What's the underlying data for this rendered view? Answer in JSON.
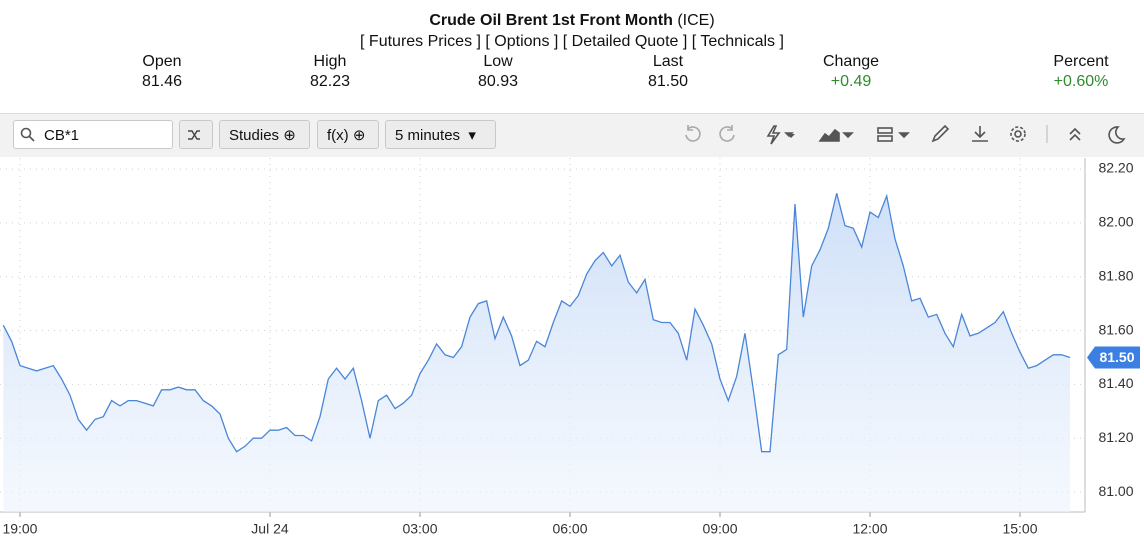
{
  "header": {
    "title": "Crude Oil Brent 1st Front Month",
    "exchange": "(ICE)",
    "links": [
      "[ Futures Prices ]",
      "[ Options ]",
      "[ Detailed Quote ]",
      "[ Technicals ]"
    ],
    "stats": [
      {
        "label": "Open",
        "value": "81.46"
      },
      {
        "label": "High",
        "value": "82.23"
      },
      {
        "label": "Low",
        "value": "80.93"
      },
      {
        "label": "Last",
        "value": "81.50"
      },
      {
        "label": "Change",
        "value": "+0.49"
      },
      {
        "label": "Percent",
        "value": "+0.60%"
      }
    ]
  },
  "toolbar": {
    "symbol": "CB*1",
    "studies": "Studies",
    "fx": "f(x)",
    "interval": "5 minutes"
  },
  "chart_data": {
    "type": "area",
    "ylim": [
      80.926,
      82.241
    ],
    "yticks": [
      {
        "value": 81,
        "label": "81.00"
      },
      {
        "value": 81.2,
        "label": "81.20"
      },
      {
        "value": 81.4,
        "label": "81.40"
      },
      {
        "value": 81.6,
        "label": "81.60"
      },
      {
        "value": 81.8,
        "label": "81.80"
      },
      {
        "value": 82,
        "label": "82.00"
      },
      {
        "value": 82.2,
        "label": "82.20"
      }
    ],
    "grid": true,
    "last_label": "81.50",
    "last_color": "#3b7fe3",
    "categories": [
      null,
      null,
      "19:00",
      null,
      null,
      null,
      null,
      null,
      null,
      null,
      null,
      null,
      null,
      null,
      null,
      null,
      null,
      null,
      null,
      null,
      null,
      null,
      null,
      null,
      null,
      null,
      null,
      null,
      null,
      null,
      null,
      null,
      "Jul 24",
      null,
      null,
      null,
      null,
      null,
      null,
      null,
      null,
      null,
      null,
      null,
      null,
      null,
      null,
      null,
      null,
      null,
      "03:00",
      null,
      null,
      null,
      null,
      null,
      null,
      null,
      null,
      null,
      null,
      null,
      null,
      null,
      null,
      null,
      null,
      null,
      "06:00",
      null,
      null,
      null,
      null,
      null,
      null,
      null,
      null,
      null,
      null,
      null,
      null,
      null,
      null,
      null,
      null,
      null,
      "09:00",
      null,
      null,
      null,
      null,
      null,
      null,
      null,
      null,
      null,
      null,
      null,
      null,
      null,
      null,
      null,
      null,
      null,
      "12:00",
      null,
      null,
      null,
      null,
      null,
      null,
      null,
      null,
      null,
      null,
      null,
      null,
      null,
      null,
      null,
      null,
      null,
      "15:00",
      null,
      null,
      null,
      null,
      null,
      null
    ],
    "series": [
      {
        "color": "#4a86d8",
        "values": [
          81.62,
          81.56,
          81.47,
          81.46,
          81.45,
          81.46,
          81.47,
          81.42,
          81.36,
          81.27,
          81.23,
          81.27,
          81.28,
          81.34,
          81.32,
          81.34,
          81.34,
          81.33,
          81.32,
          81.38,
          81.38,
          81.39,
          81.38,
          81.38,
          81.34,
          81.32,
          81.29,
          81.2,
          81.15,
          81.17,
          81.2,
          81.2,
          81.23,
          81.23,
          81.24,
          81.21,
          81.21,
          81.19,
          81.28,
          81.42,
          81.46,
          81.42,
          81.46,
          81.34,
          81.2,
          81.34,
          81.36,
          81.31,
          81.33,
          81.36,
          81.44,
          81.49,
          81.55,
          81.51,
          81.5,
          81.54,
          81.65,
          81.7,
          81.71,
          81.57,
          81.65,
          81.58,
          81.47,
          81.49,
          81.56,
          81.54,
          81.63,
          81.71,
          81.69,
          81.73,
          81.81,
          81.86,
          81.89,
          81.84,
          81.88,
          81.78,
          81.74,
          81.79,
          81.64,
          81.63,
          81.63,
          81.59,
          81.49,
          81.68,
          81.62,
          81.55,
          81.42,
          81.34,
          81.43,
          81.59,
          81.38,
          81.15,
          81.15,
          81.51,
          81.53,
          82.07,
          81.65,
          81.84,
          81.9,
          81.98,
          82.11,
          81.99,
          81.98,
          81.91,
          82.04,
          82.02,
          82.1,
          81.94,
          81.84,
          81.71,
          81.72,
          81.65,
          81.66,
          81.59,
          81.54,
          81.66,
          81.58,
          81.59,
          81.61,
          81.63,
          81.67,
          81.59,
          81.52,
          81.46,
          81.47,
          81.49,
          81.51,
          81.51,
          81.5
        ]
      }
    ]
  }
}
